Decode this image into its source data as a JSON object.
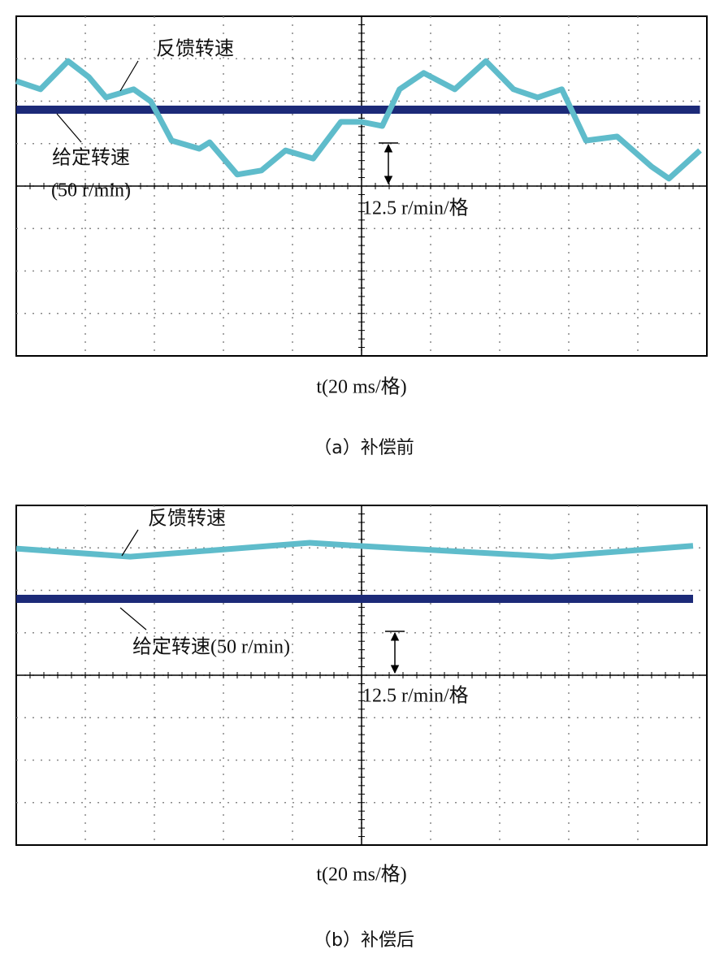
{
  "chart_data": [
    {
      "type": "line",
      "x": [
        0,
        7,
        15,
        21,
        26,
        34,
        39,
        45,
        53,
        56,
        64,
        71,
        78,
        86,
        94,
        100,
        106,
        111,
        118,
        127,
        136,
        144,
        151,
        158,
        165,
        174,
        184,
        189,
        198
      ],
      "series": [
        {
          "name": "反馈转速",
          "color": "#5fbccb",
          "values": [
            58.4,
            56.0,
            64.3,
            59.6,
            53.6,
            56.0,
            52.4,
            40.9,
            38.5,
            40.4,
            30.9,
            32.1,
            38.0,
            35.6,
            46.4,
            46.4,
            45.2,
            56.0,
            60.8,
            56.0,
            64.3,
            56.0,
            53.6,
            56.0,
            40.9,
            42.1,
            33.2,
            29.7,
            38.0
          ]
        },
        {
          "name": "给定转速",
          "color": "#1c2a78",
          "values": [
            50,
            50,
            50,
            50,
            50,
            50,
            50,
            50,
            50,
            50,
            50,
            50,
            50,
            50,
            50,
            50,
            50,
            50,
            50,
            50,
            50,
            50,
            50,
            50,
            50,
            50,
            50,
            50,
            50
          ]
        }
      ],
      "annotation": "(50 r/min)",
      "scale_label": "12.5 r/min/格",
      "xlabel": "t(20 ms/格)",
      "caption": "（a）补偿前",
      "xlim": [
        0,
        200
      ],
      "ylim": [
        -22.5,
        77.5
      ]
    },
    {
      "type": "line",
      "x": [
        0,
        33,
        85,
        99,
        155,
        196
      ],
      "series": [
        {
          "name": "反馈转速",
          "color": "#5fbccb",
          "values": [
            64.8,
            62.4,
            66.5,
            65.6,
            62.4,
            65.6
          ]
        },
        {
          "name": "给定转速(50 r/min)",
          "color": "#1c2a78",
          "values": [
            50,
            50,
            50,
            50,
            50,
            50
          ]
        }
      ],
      "scale_label": "12.5 r/min/格",
      "xlabel": "t(20 ms/格)",
      "caption": "（b）补偿后",
      "xlim": [
        0,
        200
      ],
      "ylim": [
        -22.5,
        77.5
      ]
    }
  ]
}
